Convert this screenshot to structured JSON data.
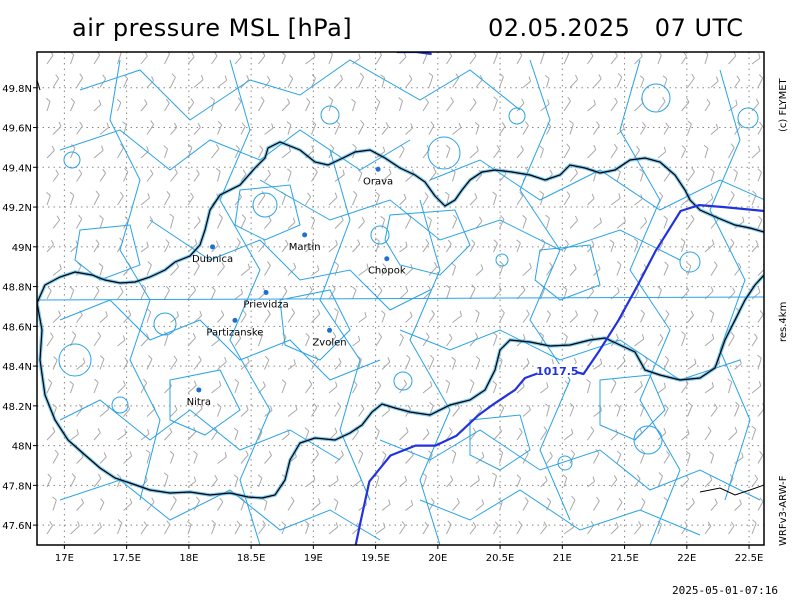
{
  "header": {
    "title": "air pressure MSL [hPa]",
    "datetime": "02.05.2025   07 UTC"
  },
  "side_labels": {
    "copyright": "(c) FLYMET",
    "resolution": "res.4km",
    "model": "WRFv3-ARW-F"
  },
  "footer": {
    "run_time": "2025-05-01-07:16"
  },
  "axes": {
    "lon_range": [
      16.78,
      22.62
    ],
    "lat_range": [
      47.5,
      49.98
    ],
    "lon_ticks": [
      17.0,
      17.5,
      18.0,
      18.5,
      19.0,
      19.5,
      20.0,
      20.5,
      21.0,
      21.5,
      22.0,
      22.5
    ],
    "lon_tick_labels": [
      "17E",
      "17.5E",
      "18E",
      "18.5E",
      "19E",
      "19.5E",
      "20E",
      "20.5E",
      "21E",
      "21.5E",
      "22E",
      "22.5E"
    ],
    "lat_ticks": [
      47.6,
      47.8,
      48.0,
      48.2,
      48.4,
      48.6,
      48.8,
      49.0,
      49.2,
      49.4,
      49.6,
      49.8
    ],
    "lat_tick_labels": [
      "47.6N",
      "47.8N",
      "48N",
      "48.2N",
      "48.4N",
      "48.6N",
      "48.8N",
      "49N",
      "49.2N",
      "49.4N",
      "49.6N",
      "49.8N"
    ],
    "grid": true
  },
  "cities": [
    {
      "name": "Orava",
      "lon": 19.52,
      "lat": 49.39
    },
    {
      "name": "Dubnica",
      "lon": 18.19,
      "lat": 49.0
    },
    {
      "name": "Martin",
      "lon": 18.93,
      "lat": 49.06
    },
    {
      "name": "Chopok",
      "lon": 19.59,
      "lat": 48.94
    },
    {
      "name": "Prievidza",
      "lon": 18.62,
      "lat": 48.77
    },
    {
      "name": "Partizanske",
      "lon": 18.37,
      "lat": 48.63
    },
    {
      "name": "Zvolen",
      "lon": 19.13,
      "lat": 48.58
    },
    {
      "name": "Nitra",
      "lon": 18.08,
      "lat": 48.28
    }
  ],
  "isobars": [
    {
      "value": "1017.5",
      "color": "#2233dd",
      "points": [
        [
          19.67,
          49.98
        ],
        [
          19.83,
          49.98
        ],
        [
          19.95,
          49.97
        ]
      ]
    },
    {
      "value": "1017.5",
      "color": "#2233dd",
      "label_at": [
        20.96,
        48.37
      ],
      "points": [
        [
          22.62,
          49.18
        ],
        [
          22.3,
          49.2
        ],
        [
          22.1,
          49.21
        ],
        [
          21.95,
          49.18
        ],
        [
          21.75,
          48.98
        ],
        [
          21.6,
          48.8
        ],
        [
          21.45,
          48.63
        ],
        [
          21.3,
          48.48
        ],
        [
          21.17,
          48.36
        ],
        [
          21.05,
          48.38
        ],
        [
          20.83,
          48.37
        ],
        [
          20.7,
          48.34
        ],
        [
          20.62,
          48.28
        ],
        [
          20.45,
          48.21
        ],
        [
          20.32,
          48.15
        ],
        [
          20.15,
          48.05
        ],
        [
          19.98,
          48.0
        ],
        [
          19.82,
          48.0
        ],
        [
          19.62,
          47.95
        ],
        [
          19.45,
          47.82
        ],
        [
          19.38,
          47.62
        ],
        [
          19.34,
          47.5
        ]
      ]
    }
  ],
  "colors": {
    "background": "#ffffff",
    "grid": "#888888",
    "border": "#000000",
    "contour": "#29a3e6",
    "isobar": "#2233dd",
    "wind_barb": "#a8a8a8",
    "city_marker": "#1f6fd0"
  }
}
